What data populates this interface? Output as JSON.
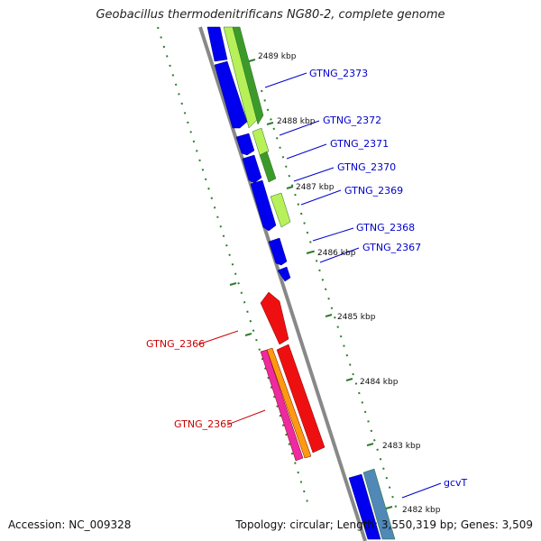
{
  "title": "Geobacillus thermodenitrificans NG80-2, complete genome",
  "footer": {
    "accession": "Accession: NC_009328",
    "summary": "Topology: circular; Length: 3,550,319 bp; Genes: 3,509"
  },
  "colors": {
    "backbone": "#888888",
    "tick": "#2e7d2e",
    "gene_label_blue": "#0000cc",
    "gene_label_red": "#cc0000"
  },
  "scale_labels": [
    "2489 kbp",
    "2488 kbp",
    "2487 kbp",
    "2486 kbp",
    "2485 kbp",
    "2484 kbp",
    "2483 kbp",
    "2482 kbp"
  ],
  "gene_labels": [
    {
      "name": "GTNG_2373",
      "strand": "forward"
    },
    {
      "name": "GTNG_2372",
      "strand": "forward"
    },
    {
      "name": "GTNG_2371",
      "strand": "forward"
    },
    {
      "name": "GTNG_2370",
      "strand": "forward"
    },
    {
      "name": "GTNG_2369",
      "strand": "forward"
    },
    {
      "name": "GTNG_2368",
      "strand": "forward"
    },
    {
      "name": "GTNG_2367",
      "strand": "forward"
    },
    {
      "name": "GTNG_2366",
      "strand": "reverse"
    },
    {
      "name": "GTNG_2365",
      "strand": "reverse"
    },
    {
      "name": "gcvT",
      "strand": "forward"
    }
  ]
}
